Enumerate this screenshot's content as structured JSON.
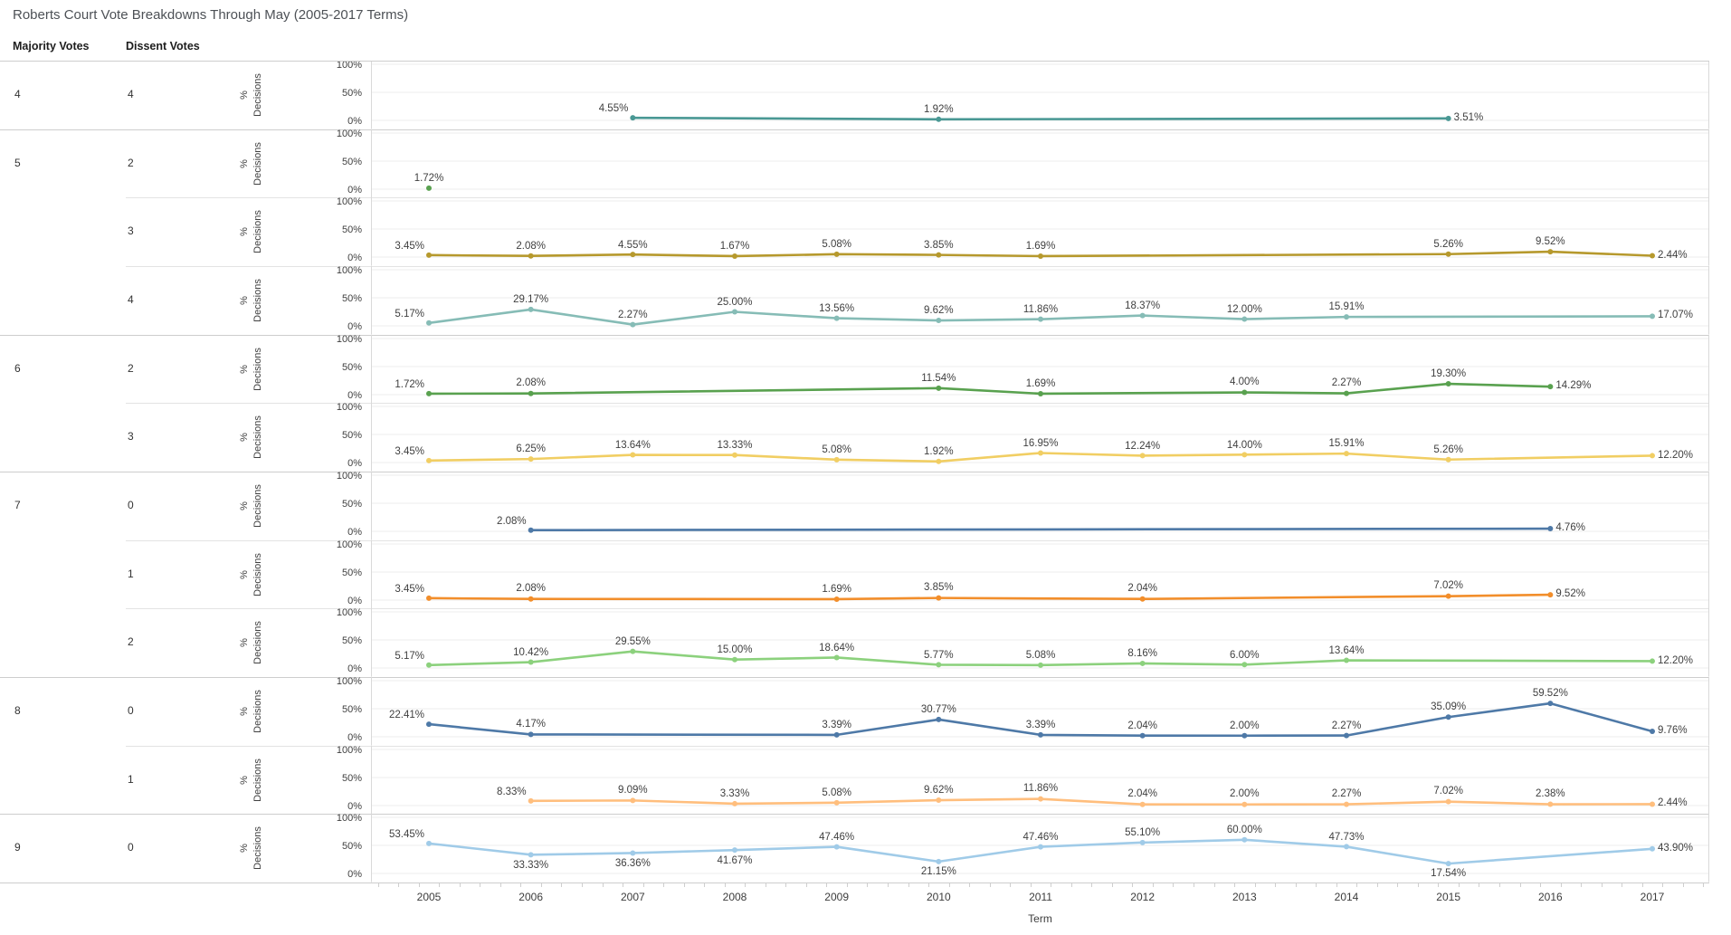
{
  "title": "Roberts Court Vote Breakdowns Through May (2005-2017 Terms)",
  "columns": {
    "majority": "Majority Votes",
    "dissent": "Dissent Votes"
  },
  "axis": {
    "y_title": "% Decisions",
    "y_ticks": [
      "100%",
      "50%",
      "0%"
    ],
    "x_title": "Term",
    "years": [
      "2005",
      "2006",
      "2007",
      "2008",
      "2009",
      "2010",
      "2011",
      "2012",
      "2013",
      "2014",
      "2015",
      "2016",
      "2017"
    ]
  },
  "chart_data": {
    "type": "line",
    "x": [
      2005,
      2006,
      2007,
      2008,
      2009,
      2010,
      2011,
      2012,
      2013,
      2014,
      2015,
      2016,
      2017
    ],
    "ylim": [
      0,
      100
    ],
    "y_unit": "% of decisions",
    "panels": [
      {
        "majority": "4",
        "dissent": "4",
        "color": "#499894",
        "points": [
          {
            "year": 2007,
            "value": 4.55,
            "label": "4.55%",
            "placement": "left"
          },
          {
            "year": 2010,
            "value": 1.92,
            "label": "1.92%",
            "placement": "above"
          },
          {
            "year": 2015,
            "value": 3.51,
            "label": "3.51%",
            "placement": "right"
          }
        ]
      },
      {
        "majority": "5",
        "dissent": "2",
        "color": "#59A14F",
        "points": [
          {
            "year": 2005,
            "value": 1.72,
            "label": "1.72%",
            "placement": "above"
          }
        ]
      },
      {
        "dissent": "3",
        "color": "#B6992D",
        "points": [
          {
            "year": 2005,
            "value": 3.45,
            "label": "3.45%",
            "placement": "left"
          },
          {
            "year": 2006,
            "value": 2.08,
            "label": "2.08%",
            "placement": "above"
          },
          {
            "year": 2007,
            "value": 4.55,
            "label": "4.55%",
            "placement": "above"
          },
          {
            "year": 2008,
            "value": 1.67,
            "label": "1.67%",
            "placement": "above"
          },
          {
            "year": 2009,
            "value": 5.08,
            "label": "5.08%",
            "placement": "above"
          },
          {
            "year": 2010,
            "value": 3.85,
            "label": "3.85%",
            "placement": "above"
          },
          {
            "year": 2011,
            "value": 1.69,
            "label": "1.69%",
            "placement": "above"
          },
          {
            "year": 2015,
            "value": 5.26,
            "label": "5.26%",
            "placement": "above"
          },
          {
            "year": 2016,
            "value": 9.52,
            "label": "9.52%",
            "placement": "above"
          },
          {
            "year": 2017,
            "value": 2.44,
            "label": "2.44%",
            "placement": "right"
          }
        ]
      },
      {
        "dissent": "4",
        "color": "#86BCB6",
        "points": [
          {
            "year": 2005,
            "value": 5.17,
            "label": "5.17%",
            "placement": "left"
          },
          {
            "year": 2006,
            "value": 29.17,
            "label": "29.17%",
            "placement": "above"
          },
          {
            "year": 2007,
            "value": 2.27,
            "label": "2.27%",
            "placement": "above"
          },
          {
            "year": 2008,
            "value": 25.0,
            "label": "25.00%",
            "placement": "above"
          },
          {
            "year": 2009,
            "value": 13.56,
            "label": "13.56%",
            "placement": "above"
          },
          {
            "year": 2010,
            "value": 9.62,
            "label": "9.62%",
            "placement": "above"
          },
          {
            "year": 2011,
            "value": 11.86,
            "label": "11.86%",
            "placement": "above"
          },
          {
            "year": 2012,
            "value": 18.37,
            "label": "18.37%",
            "placement": "above"
          },
          {
            "year": 2013,
            "value": 12.0,
            "label": "12.00%",
            "placement": "above"
          },
          {
            "year": 2014,
            "value": 15.91,
            "label": "15.91%",
            "placement": "above"
          },
          {
            "year": 2017,
            "value": 17.07,
            "label": "17.07%",
            "placement": "right"
          }
        ]
      },
      {
        "majority": "6",
        "dissent": "2",
        "color": "#59A14F",
        "points": [
          {
            "year": 2005,
            "value": 1.72,
            "label": "1.72%",
            "placement": "left"
          },
          {
            "year": 2006,
            "value": 2.08,
            "label": "2.08%",
            "placement": "above"
          },
          {
            "year": 2010,
            "value": 11.54,
            "label": "11.54%",
            "placement": "above"
          },
          {
            "year": 2011,
            "value": 1.69,
            "label": "1.69%",
            "placement": "above"
          },
          {
            "year": 2013,
            "value": 4.0,
            "label": "4.00%",
            "placement": "above"
          },
          {
            "year": 2014,
            "value": 2.27,
            "label": "2.27%",
            "placement": "above"
          },
          {
            "year": 2015,
            "value": 19.3,
            "label": "19.30%",
            "placement": "above"
          },
          {
            "year": 2016,
            "value": 14.29,
            "label": "14.29%",
            "placement": "right"
          }
        ]
      },
      {
        "dissent": "3",
        "color": "#F1CE63",
        "points": [
          {
            "year": 2005,
            "value": 3.45,
            "label": "3.45%",
            "placement": "left"
          },
          {
            "year": 2006,
            "value": 6.25,
            "label": "6.25%",
            "placement": "above"
          },
          {
            "year": 2007,
            "value": 13.64,
            "label": "13.64%",
            "placement": "above"
          },
          {
            "year": 2008,
            "value": 13.33,
            "label": "13.33%",
            "placement": "above"
          },
          {
            "year": 2009,
            "value": 5.08,
            "label": "5.08%",
            "placement": "above"
          },
          {
            "year": 2010,
            "value": 1.92,
            "label": "1.92%",
            "placement": "above"
          },
          {
            "year": 2011,
            "value": 16.95,
            "label": "16.95%",
            "placement": "above"
          },
          {
            "year": 2012,
            "value": 12.24,
            "label": "12.24%",
            "placement": "above"
          },
          {
            "year": 2013,
            "value": 14.0,
            "label": "14.00%",
            "placement": "above"
          },
          {
            "year": 2014,
            "value": 15.91,
            "label": "15.91%",
            "placement": "above"
          },
          {
            "year": 2015,
            "value": 5.26,
            "label": "5.26%",
            "placement": "above"
          },
          {
            "year": 2017,
            "value": 12.2,
            "label": "12.20%",
            "placement": "right"
          }
        ]
      },
      {
        "majority": "7",
        "dissent": "0",
        "color": "#4E79A7",
        "points": [
          {
            "year": 2006,
            "value": 2.08,
            "label": "2.08%",
            "placement": "left"
          },
          {
            "year": 2016,
            "value": 4.76,
            "label": "4.76%",
            "placement": "right"
          }
        ]
      },
      {
        "dissent": "1",
        "color": "#F28E2B",
        "points": [
          {
            "year": 2005,
            "value": 3.45,
            "label": "3.45%",
            "placement": "left"
          },
          {
            "year": 2006,
            "value": 2.08,
            "label": "2.08%",
            "placement": "above"
          },
          {
            "year": 2009,
            "value": 1.69,
            "label": "1.69%",
            "placement": "above"
          },
          {
            "year": 2010,
            "value": 3.85,
            "label": "3.85%",
            "placement": "above"
          },
          {
            "year": 2012,
            "value": 2.04,
            "label": "2.04%",
            "placement": "above"
          },
          {
            "year": 2015,
            "value": 7.02,
            "label": "7.02%",
            "placement": "above"
          },
          {
            "year": 2016,
            "value": 9.52,
            "label": "9.52%",
            "placement": "right"
          }
        ]
      },
      {
        "dissent": "2",
        "color": "#8CD17D",
        "points": [
          {
            "year": 2005,
            "value": 5.17,
            "label": "5.17%",
            "placement": "left"
          },
          {
            "year": 2006,
            "value": 10.42,
            "label": "10.42%",
            "placement": "above"
          },
          {
            "year": 2007,
            "value": 29.55,
            "label": "29.55%",
            "placement": "above"
          },
          {
            "year": 2008,
            "value": 15.0,
            "label": "15.00%",
            "placement": "above"
          },
          {
            "year": 2009,
            "value": 18.64,
            "label": "18.64%",
            "placement": "above"
          },
          {
            "year": 2010,
            "value": 5.77,
            "label": "5.77%",
            "placement": "above"
          },
          {
            "year": 2011,
            "value": 5.08,
            "label": "5.08%",
            "placement": "above"
          },
          {
            "year": 2012,
            "value": 8.16,
            "label": "8.16%",
            "placement": "above"
          },
          {
            "year": 2013,
            "value": 6.0,
            "label": "6.00%",
            "placement": "above"
          },
          {
            "year": 2014,
            "value": 13.64,
            "label": "13.64%",
            "placement": "above"
          },
          {
            "year": 2017,
            "value": 12.2,
            "label": "12.20%",
            "placement": "right"
          }
        ]
      },
      {
        "majority": "8",
        "dissent": "0",
        "color": "#4E79A7",
        "points": [
          {
            "year": 2005,
            "value": 22.41,
            "label": "22.41%",
            "placement": "left"
          },
          {
            "year": 2006,
            "value": 4.17,
            "label": "4.17%",
            "placement": "above"
          },
          {
            "year": 2009,
            "value": 3.39,
            "label": "3.39%",
            "placement": "above"
          },
          {
            "year": 2010,
            "value": 30.77,
            "label": "30.77%",
            "placement": "above"
          },
          {
            "year": 2011,
            "value": 3.39,
            "label": "3.39%",
            "placement": "above"
          },
          {
            "year": 2012,
            "value": 2.04,
            "label": "2.04%",
            "placement": "above"
          },
          {
            "year": 2013,
            "value": 2.0,
            "label": "2.00%",
            "placement": "above"
          },
          {
            "year": 2014,
            "value": 2.27,
            "label": "2.27%",
            "placement": "above"
          },
          {
            "year": 2015,
            "value": 35.09,
            "label": "35.09%",
            "placement": "above"
          },
          {
            "year": 2016,
            "value": 59.52,
            "label": "59.52%",
            "placement": "above"
          },
          {
            "year": 2017,
            "value": 9.76,
            "label": "9.76%",
            "placement": "right"
          }
        ]
      },
      {
        "dissent": "1",
        "color": "#FFBE7D",
        "points": [
          {
            "year": 2006,
            "value": 8.33,
            "label": "8.33%",
            "placement": "left"
          },
          {
            "year": 2007,
            "value": 9.09,
            "label": "9.09%",
            "placement": "above"
          },
          {
            "year": 2008,
            "value": 3.33,
            "label": "3.33%",
            "placement": "above"
          },
          {
            "year": 2009,
            "value": 5.08,
            "label": "5.08%",
            "placement": "above"
          },
          {
            "year": 2010,
            "value": 9.62,
            "label": "9.62%",
            "placement": "above"
          },
          {
            "year": 2011,
            "value": 11.86,
            "label": "11.86%",
            "placement": "above"
          },
          {
            "year": 2012,
            "value": 2.04,
            "label": "2.04%",
            "placement": "above"
          },
          {
            "year": 2013,
            "value": 2.0,
            "label": "2.00%",
            "placement": "above"
          },
          {
            "year": 2014,
            "value": 2.27,
            "label": "2.27%",
            "placement": "above"
          },
          {
            "year": 2015,
            "value": 7.02,
            "label": "7.02%",
            "placement": "above"
          },
          {
            "year": 2016,
            "value": 2.38,
            "label": "2.38%",
            "placement": "above"
          },
          {
            "year": 2017,
            "value": 2.44,
            "label": "2.44%",
            "placement": "right"
          }
        ]
      },
      {
        "majority": "9",
        "dissent": "0",
        "color": "#A0CBE8",
        "points": [
          {
            "year": 2005,
            "value": 53.45,
            "label": "53.45%",
            "placement": "left"
          },
          {
            "year": 2006,
            "value": 33.33,
            "label": "33.33%",
            "placement": "below"
          },
          {
            "year": 2007,
            "value": 36.36,
            "label": "36.36%",
            "placement": "below"
          },
          {
            "year": 2008,
            "value": 41.67,
            "label": "41.67%",
            "placement": "below"
          },
          {
            "year": 2009,
            "value": 47.46,
            "label": "47.46%",
            "placement": "above"
          },
          {
            "year": 2010,
            "value": 21.15,
            "label": "21.15%",
            "placement": "below"
          },
          {
            "year": 2011,
            "value": 47.46,
            "label": "47.46%",
            "placement": "above"
          },
          {
            "year": 2012,
            "value": 55.1,
            "label": "55.10%",
            "placement": "above"
          },
          {
            "year": 2013,
            "value": 60.0,
            "label": "60.00%",
            "placement": "above"
          },
          {
            "year": 2014,
            "value": 47.73,
            "label": "47.73%",
            "placement": "above"
          },
          {
            "year": 2015,
            "value": 17.54,
            "label": "17.54%",
            "placement": "below"
          },
          {
            "year": 2017,
            "value": 43.9,
            "label": "43.90%",
            "placement": "right"
          }
        ]
      }
    ]
  }
}
